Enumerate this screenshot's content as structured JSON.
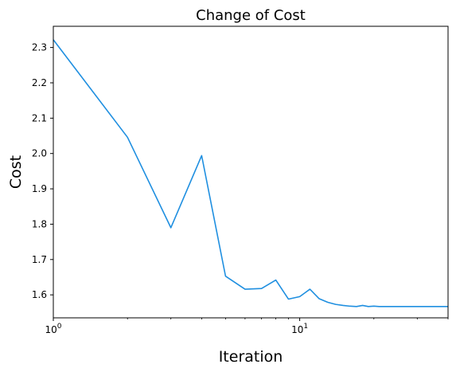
{
  "chart_data": {
    "type": "line",
    "title": "Change of Cost",
    "xlabel": "Iteration",
    "ylabel": "Cost",
    "xscale": "log",
    "xlim": [
      1,
      40
    ],
    "ylim": [
      1.535,
      2.36
    ],
    "grid": false,
    "line_color": "#1f8fe0",
    "x_ticks": [
      {
        "value": 1,
        "base": "10",
        "exp": "0"
      },
      {
        "value": 10,
        "base": "10",
        "exp": "1"
      }
    ],
    "y_ticks": [
      {
        "value": 1.6,
        "label": "1.6"
      },
      {
        "value": 1.7,
        "label": "1.7"
      },
      {
        "value": 1.8,
        "label": "1.8"
      },
      {
        "value": 1.9,
        "label": "1.9"
      },
      {
        "value": 2.0,
        "label": "2.0"
      },
      {
        "value": 2.1,
        "label": "2.1"
      },
      {
        "value": 2.2,
        "label": "2.2"
      },
      {
        "value": 2.3,
        "label": "2.3"
      }
    ],
    "series": [
      {
        "x": [
          1,
          2,
          3,
          4,
          5,
          6,
          7,
          8,
          9,
          10,
          11,
          12,
          13,
          14,
          15,
          16,
          17,
          18,
          19,
          20,
          21,
          22,
          23,
          24,
          25,
          26,
          27,
          28,
          29,
          30,
          31,
          32,
          33,
          34,
          35,
          36,
          37,
          38,
          39,
          40
        ],
        "y": [
          2.322,
          2.046,
          1.79,
          1.994,
          1.653,
          1.616,
          1.618,
          1.642,
          1.588,
          1.595,
          1.616,
          1.589,
          1.579,
          1.573,
          1.57,
          1.568,
          1.567,
          1.57,
          1.567,
          1.568,
          1.567,
          1.567,
          1.567,
          1.567,
          1.567,
          1.567,
          1.567,
          1.567,
          1.567,
          1.567,
          1.567,
          1.567,
          1.567,
          1.567,
          1.567,
          1.567,
          1.567,
          1.567,
          1.567,
          1.567
        ]
      }
    ]
  }
}
